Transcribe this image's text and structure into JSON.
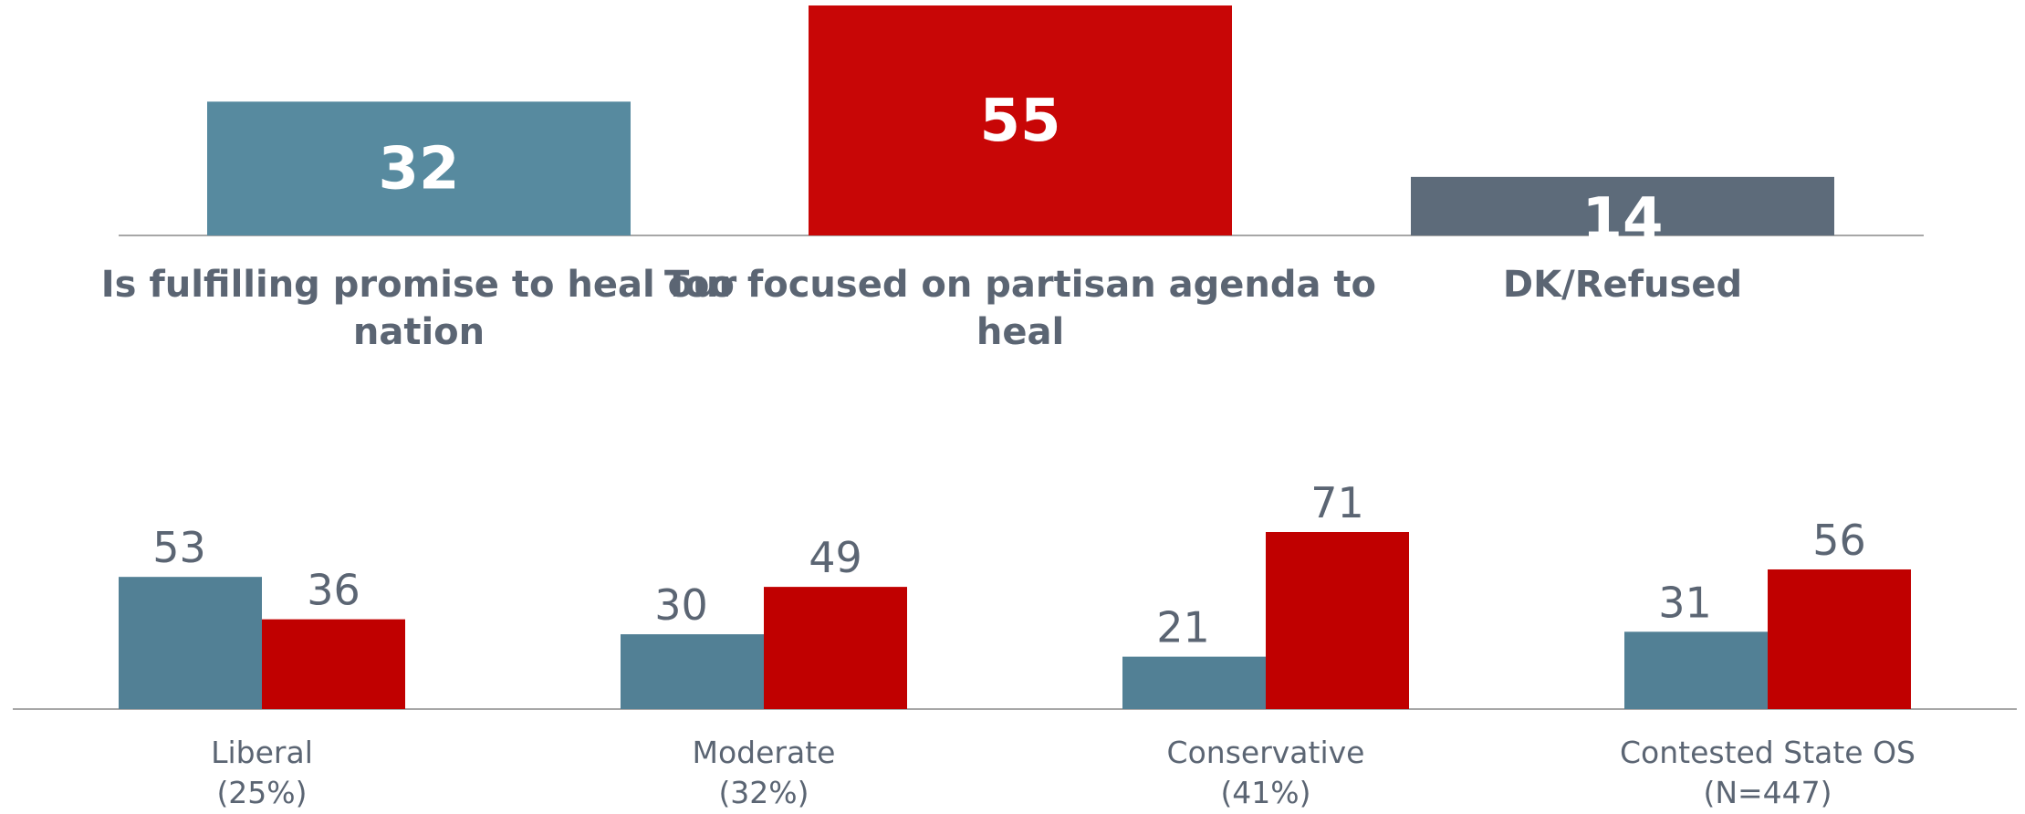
{
  "colors": {
    "fulfilling": "#578a9f",
    "partisan": "#c80606",
    "dk": "#5d6b7a",
    "series_a": "#528095",
    "series_b": "#c00000",
    "baseline": "#a7a7a7",
    "text": "#5b6573"
  },
  "chart_data": [
    {
      "type": "bar",
      "categories": [
        [
          "Is fulfilling promise to heal our",
          "nation"
        ],
        [
          "Too focused on partisan agenda to",
          "heal"
        ],
        [
          "DK/Refused"
        ]
      ],
      "values": [
        32,
        55,
        14
      ],
      "ylim": [
        0,
        55
      ],
      "grid": false
    },
    {
      "type": "bar",
      "categories": [
        [
          "Liberal",
          "(25%)"
        ],
        [
          "Moderate",
          "(32%)"
        ],
        [
          "Conservative",
          "(41%)"
        ],
        [
          "Contested State OS",
          "(N=447)"
        ]
      ],
      "series": [
        {
          "values": [
            53,
            30,
            21,
            31
          ]
        },
        {
          "values": [
            36,
            49,
            71,
            56
          ]
        }
      ],
      "ylim": [
        0,
        71
      ],
      "grid": false
    }
  ]
}
